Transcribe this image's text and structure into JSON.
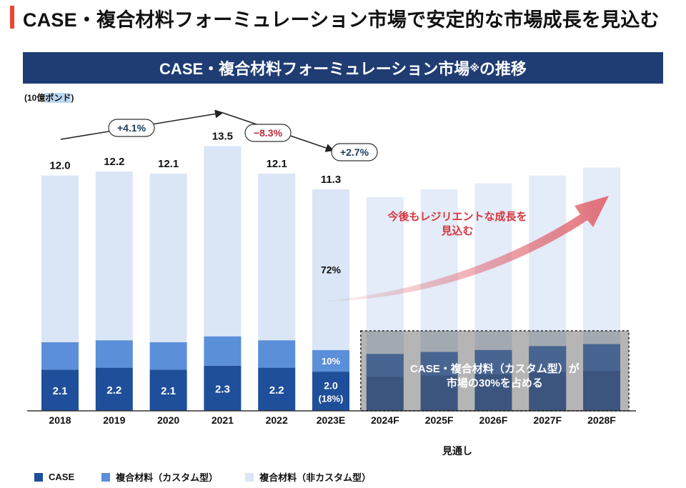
{
  "page": {
    "title": "CASE・複合材料フォーミュレーション市場で安定的な市場成長を見込む",
    "accent_color": "#e8482f"
  },
  "banner": {
    "title": "CASE・複合材料フォーミュレーション市場",
    "superscript": "※",
    "title_suffix": "の推移",
    "color": "#1f3c73"
  },
  "unit": {
    "prefix": "(10億",
    "highlight": "ポンド",
    "suffix": ")"
  },
  "chart_data": {
    "type": "bar",
    "stacked": true,
    "categories": [
      "2018",
      "2019",
      "2020",
      "2021",
      "2022",
      "2023E",
      "2024F",
      "2025F",
      "2026F",
      "2027F",
      "2028F"
    ],
    "totals": [
      12.0,
      12.2,
      12.1,
      13.5,
      12.1,
      11.3,
      null,
      null,
      null,
      null,
      null
    ],
    "total_labels": [
      "12.0",
      "12.2",
      "12.1",
      "13.5",
      "12.1",
      "11.3",
      "",
      "",
      "",
      "",
      ""
    ],
    "series": [
      {
        "name": "CASE",
        "color": "#1f4e9a",
        "values": [
          2.1,
          2.2,
          2.1,
          2.3,
          2.2,
          2.0,
          null,
          null,
          null,
          null,
          null
        ],
        "labels": [
          "2.1",
          "2.2",
          "2.1",
          "2.3",
          "2.2",
          "2.0",
          "",
          "",
          "",
          "",
          ""
        ]
      },
      {
        "name": "複合材料（カスタム型）",
        "color": "#5b8fd9",
        "values": [
          1.4,
          1.4,
          1.4,
          1.5,
          1.4,
          1.1,
          null,
          null,
          null,
          null,
          null
        ],
        "labels": [
          "",
          "",
          "",
          "",
          "",
          "10%",
          "",
          "",
          "",
          "",
          ""
        ]
      },
      {
        "name": "複合材料（非カスタム型）",
        "color": "#dae6f6",
        "values": [
          8.5,
          8.6,
          8.6,
          9.7,
          8.5,
          8.2,
          null,
          null,
          null,
          null,
          null
        ],
        "labels": [
          "",
          "",
          "",
          "",
          "",
          "72%",
          "",
          "",
          "",
          "",
          ""
        ]
      }
    ],
    "case_share_label_2023": "(18%)",
    "forecast": {
      "categories": [
        "2024F",
        "2025F",
        "2026F",
        "2027F",
        "2028F"
      ],
      "totals_estimated": [
        10.9,
        11.3,
        11.6,
        12.0,
        12.4
      ],
      "case_composite_estimated": [
        2.9,
        3.0,
        3.1,
        3.3,
        3.4
      ],
      "box_label_line1": "CASE・複合材料（カスタム型）が",
      "box_label_line2": "市場の30%を占める",
      "growth_label_line1": "今後もレジリエントな成長を",
      "growth_label_line2": "見込む",
      "caption": "見通し",
      "growth_color": "#e05a63"
    },
    "growth_annotations": [
      {
        "label": "+4.1%",
        "color": "#1a3d5c"
      },
      {
        "label": "−8.3%",
        "color": "#c0283a"
      },
      {
        "label": "+2.7%",
        "color": "#1a3d5c"
      }
    ],
    "ylim": [
      0,
      14.5
    ],
    "grid": false,
    "legend_position": "bottom-left"
  }
}
